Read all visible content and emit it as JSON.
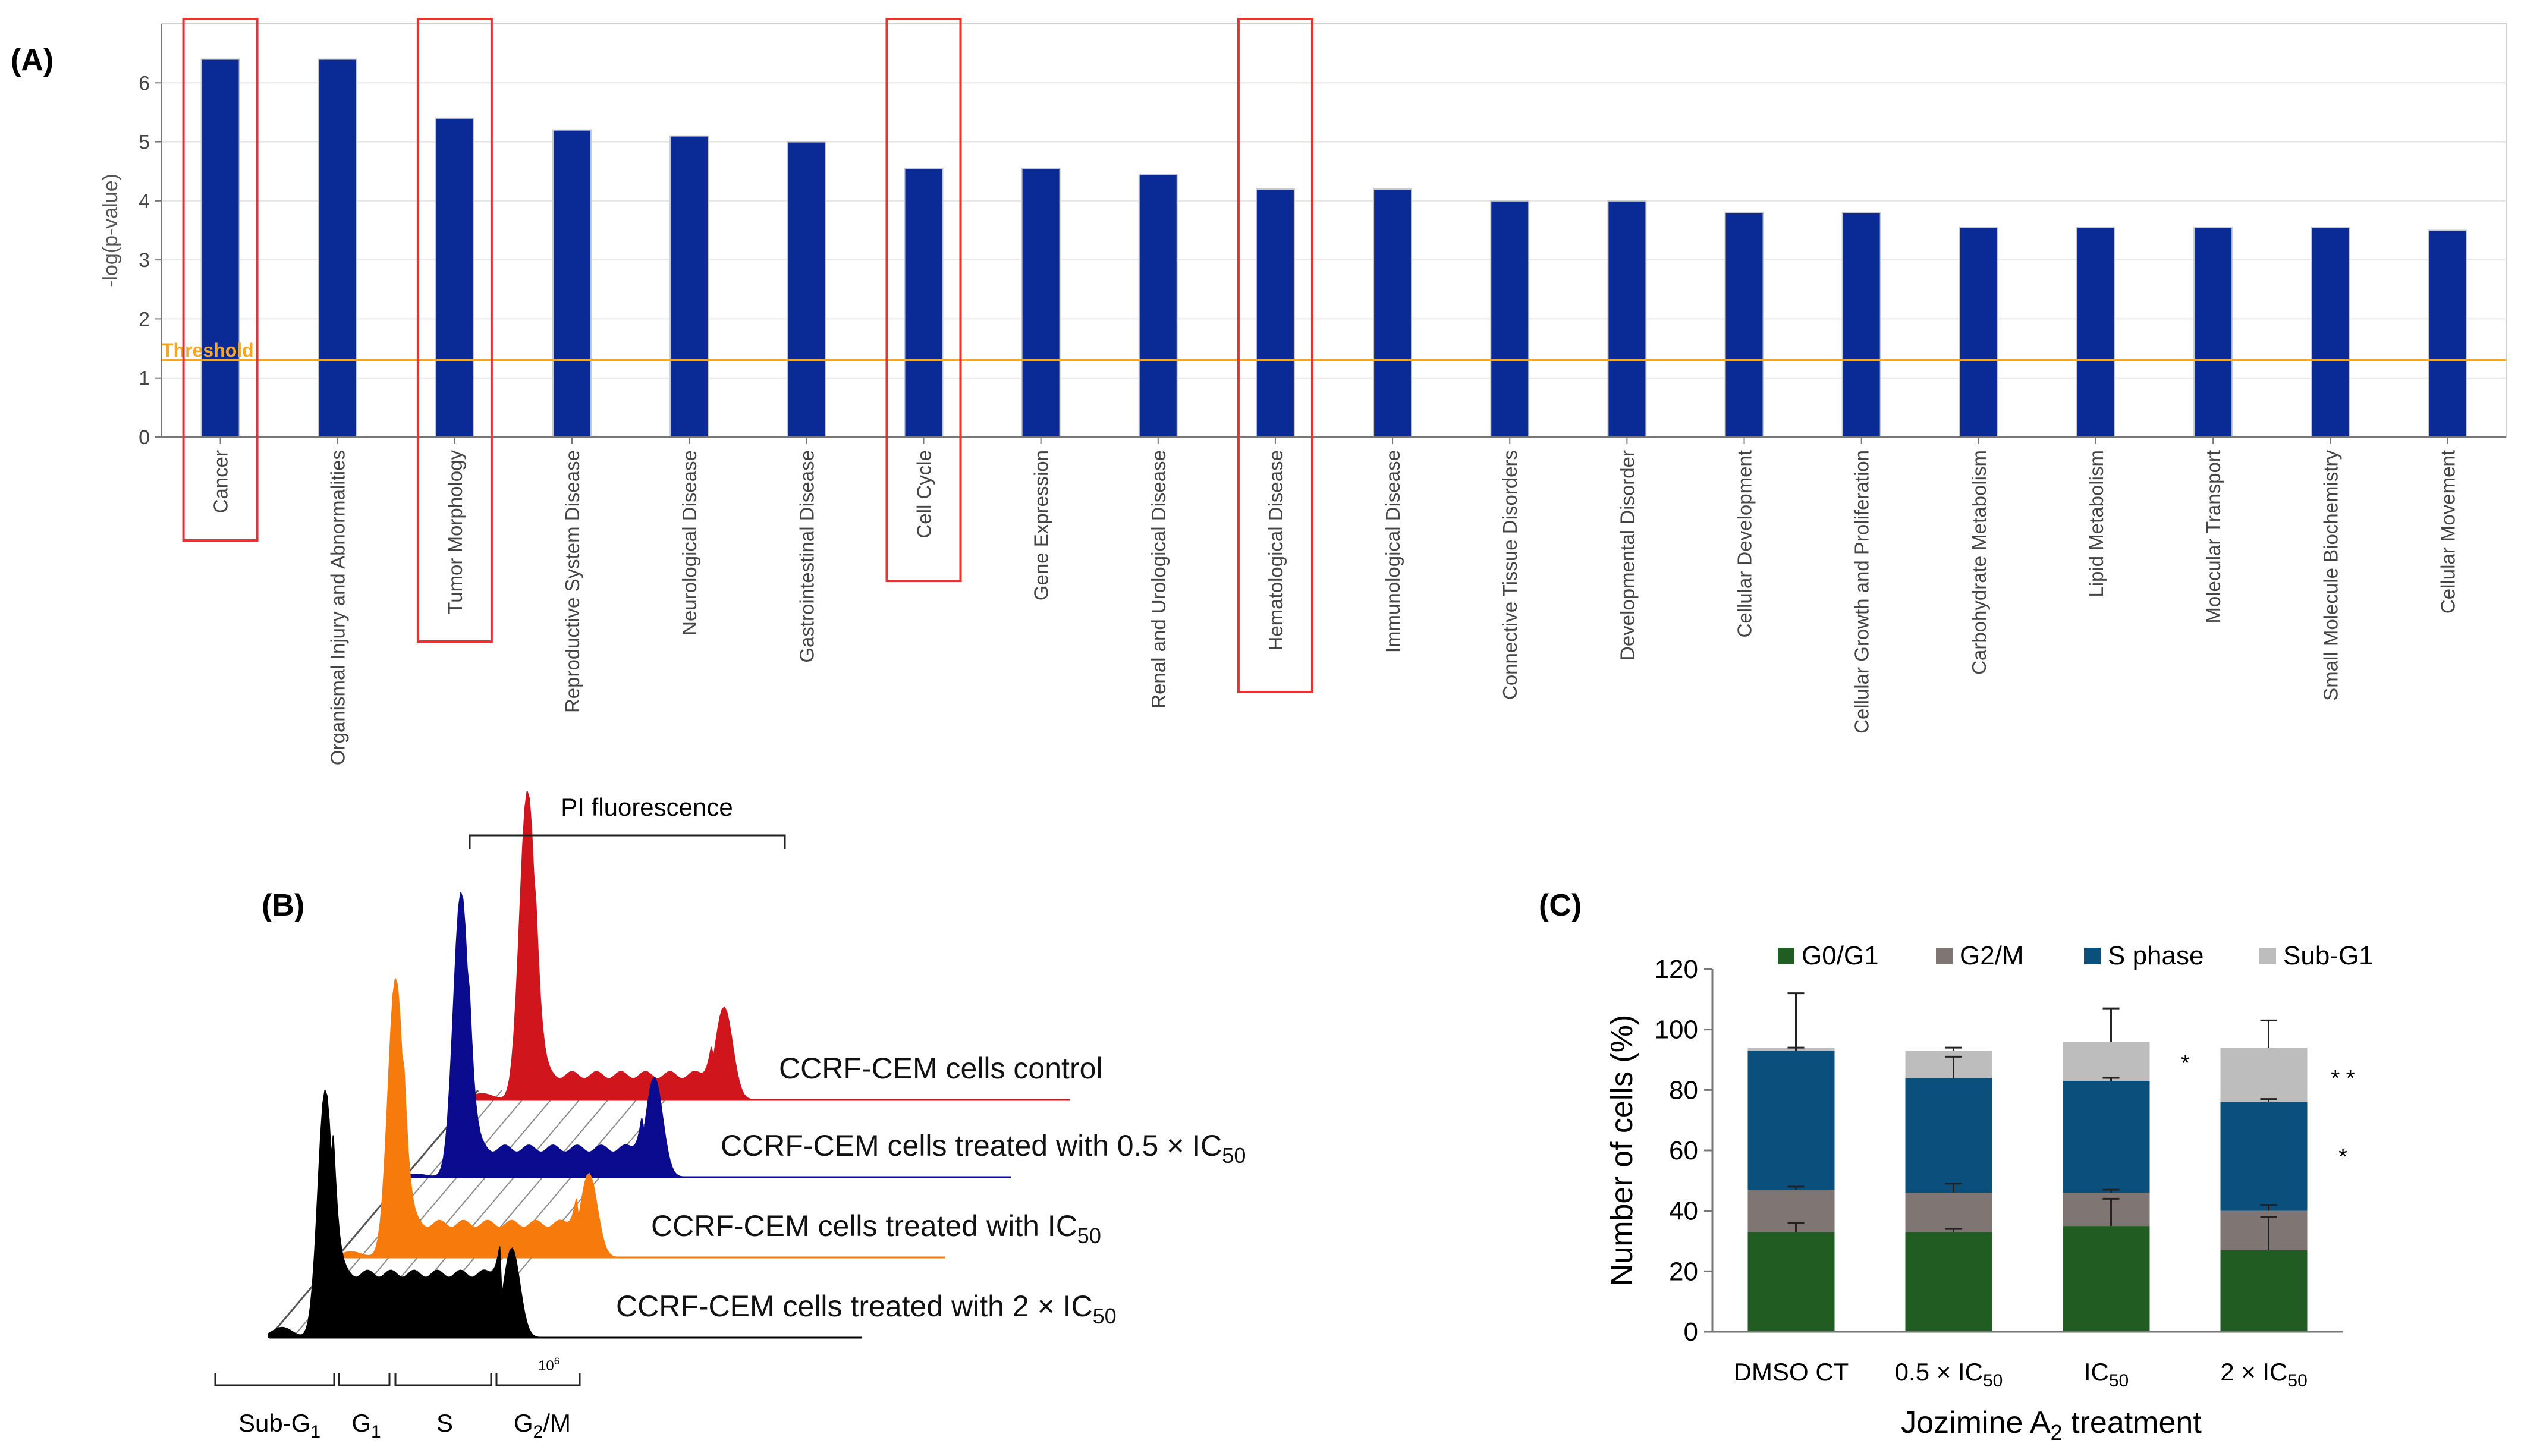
{
  "panels": {
    "a_label": "(A)",
    "b_label": "(B)",
    "c_label": "(C)"
  },
  "chart_data": [
    {
      "id": "A",
      "type": "bar",
      "ylabel": "-log(p-value)",
      "ylim": [
        0,
        7
      ],
      "yticks": [
        0,
        1,
        2,
        3,
        4,
        5,
        6
      ],
      "grid": true,
      "threshold": {
        "label": "Threshold",
        "value": 1.3,
        "color": "#f5a623"
      },
      "bar_color": "#0a2a96",
      "categories": [
        "Cancer",
        "Organismal Injury and Abnormalities",
        "Tumor Morphology",
        "Reproductive System Disease",
        "Neurological Disease",
        "Gastrointestinal Disease",
        "Cell Cycle",
        "Gene Expression",
        "Renal and Urological Disease",
        "Hematological Disease",
        "Immunological Disease",
        "Connective Tissue Disorders",
        "Developmental Disorder",
        "Cellular Development",
        "Cellular Growth and Proliferation",
        "Carbohydrate Metabolism",
        "Lipid Metabolism",
        "Molecular Transport",
        "Small Molecule Biochemistry",
        "Cellular Movement"
      ],
      "values": [
        6.4,
        6.4,
        5.4,
        5.2,
        5.1,
        5.0,
        4.55,
        4.55,
        4.45,
        4.2,
        4.2,
        4.0,
        4.0,
        3.8,
        3.8,
        3.55,
        3.55,
        3.55,
        3.55,
        3.5
      ],
      "highlighted": [
        "Cancer",
        "Tumor Morphology",
        "Cell Cycle",
        "Hematological Disease"
      ],
      "highlight_color": "#e53333"
    },
    {
      "id": "B",
      "type": "area",
      "top_label": "PI fluorescence",
      "axis_tick": "10",
      "axis_tick_exp": "6",
      "phase_labels": [
        {
          "main": "Sub-G",
          "sub": "1"
        },
        {
          "main": "G",
          "sub": "1"
        },
        {
          "main": "S",
          "sub": ""
        },
        {
          "main": "G",
          "sub": "2",
          "tail": "/M"
        }
      ],
      "series": [
        {
          "name": "CCRF-CEM cells control",
          "sub": "",
          "color": "#d0161c"
        },
        {
          "name": "CCRF-CEM cells treated with 0.5 × IC",
          "sub": "50",
          "color": "#0b0b8f"
        },
        {
          "name": "CCRF-CEM cells treated with IC",
          "sub": "50",
          "color": "#f77b0c"
        },
        {
          "name": "CCRF-CEM cells treated with 2 × IC",
          "sub": "50",
          "color": "#000000"
        }
      ]
    },
    {
      "id": "C",
      "type": "bar",
      "stacked": true,
      "ylabel": "Number of cells (%)",
      "xlabel": "Jozimine A",
      "xlabel_sub": "2",
      "xlabel_tail": " treatment",
      "ylim": [
        0,
        120
      ],
      "yticks": [
        0,
        20,
        40,
        60,
        80,
        100,
        120
      ],
      "legend_position": "top",
      "categories": [
        {
          "main": "DMSO CT",
          "sub": ""
        },
        {
          "main": "0.5 × IC",
          "sub": "50"
        },
        {
          "main": "IC",
          "sub": "50"
        },
        {
          "main": "2 × IC",
          "sub": "50"
        }
      ],
      "series": [
        {
          "name": "G0/G1",
          "color": "#215c22",
          "values": [
            33,
            33,
            35,
            27
          ],
          "errors": [
            3,
            1,
            9,
            11
          ]
        },
        {
          "name": "G2/M",
          "color": "#7f7572",
          "values": [
            14,
            13,
            11,
            13
          ],
          "errors": [
            1,
            3,
            1,
            2
          ]
        },
        {
          "name": "S phase",
          "color": "#0b4f7c",
          "values": [
            46,
            38,
            37,
            36
          ],
          "errors": [
            1,
            7,
            1,
            1
          ]
        },
        {
          "name": "Sub-G1",
          "color": "#bdbdbd",
          "values": [
            1,
            9,
            13,
            18
          ],
          "errors": [
            18,
            1,
            11,
            9
          ]
        }
      ],
      "annotations": [
        {
          "text": "*",
          "category": 2,
          "y": 90
        },
        {
          "text": "* *",
          "category": 3,
          "y": 85
        },
        {
          "text": "*",
          "category": 3,
          "y": 59
        }
      ]
    }
  ]
}
